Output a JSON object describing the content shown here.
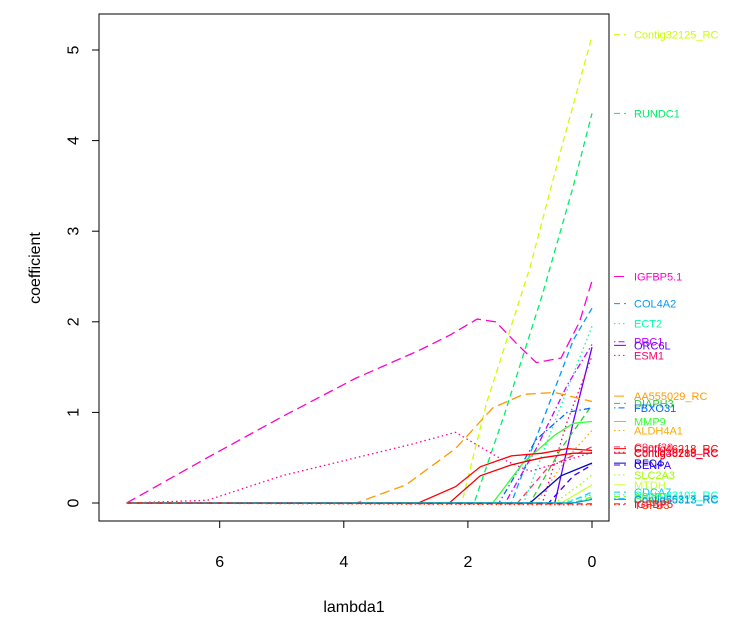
{
  "chart_data": {
    "type": "line",
    "title": "",
    "xlabel": "lambda1",
    "ylabel": "coefficient",
    "xlim": [
      7.6,
      -0.2
    ],
    "ylim": [
      -0.1,
      5.2
    ],
    "x_reversed": true,
    "x_ticks": [
      6,
      4,
      2,
      0
    ],
    "x_tick_labels": [
      "6",
      "4",
      "2",
      "0"
    ],
    "y_ticks": [
      0,
      1,
      2,
      3,
      4,
      5
    ],
    "y_tick_labels": [
      "0",
      "1",
      "2",
      "3",
      "4",
      "5"
    ],
    "grid": false,
    "legend": "none",
    "series": [
      {
        "name": "Contig32125_RC",
        "color": "#ccff00",
        "dash": "dashed",
        "label_y": 5.17,
        "points": [
          [
            7.5,
            0
          ],
          [
            2.1,
            0
          ],
          [
            1.7,
            1.1
          ],
          [
            1.0,
            2.6
          ],
          [
            0.5,
            3.9
          ],
          [
            0.0,
            5.15
          ]
        ]
      },
      {
        "name": "RUNDC1",
        "color": "#00ee66",
        "dash": "dashed",
        "label_y": 4.3,
        "points": [
          [
            7.5,
            0
          ],
          [
            1.9,
            0
          ],
          [
            1.4,
            1.0
          ],
          [
            0.8,
            2.3
          ],
          [
            0.3,
            3.5
          ],
          [
            0.0,
            4.3
          ]
        ]
      },
      {
        "name": "IGFBP5.1",
        "color": "#ff00cc",
        "dash": "longdash",
        "label_y": 2.5,
        "points": [
          [
            7.5,
            0
          ],
          [
            6.2,
            0.5
          ],
          [
            5.0,
            0.95
          ],
          [
            3.8,
            1.38
          ],
          [
            2.8,
            1.68
          ],
          [
            2.3,
            1.85
          ],
          [
            1.85,
            2.03
          ],
          [
            1.55,
            2.0
          ],
          [
            1.2,
            1.75
          ],
          [
            0.9,
            1.55
          ],
          [
            0.5,
            1.6
          ],
          [
            0.2,
            2.0
          ],
          [
            0.0,
            2.45
          ]
        ]
      },
      {
        "name": "COL4A2",
        "color": "#0099ff",
        "dash": "dashed",
        "label_y": 2.2,
        "points": [
          [
            7.5,
            0
          ],
          [
            1.3,
            0
          ],
          [
            0.8,
            0.9
          ],
          [
            0.3,
            1.8
          ],
          [
            0.0,
            2.15
          ]
        ]
      },
      {
        "name": "ECT2",
        "color": "#00ffaa",
        "dash": "dotted",
        "label_y": 1.98,
        "points": [
          [
            7.5,
            0
          ],
          [
            1.1,
            0
          ],
          [
            0.6,
            0.9
          ],
          [
            0.0,
            1.95
          ]
        ]
      },
      {
        "name": "PRC1",
        "color": "#cc00ff",
        "dash": "dotdash",
        "label_y": 1.78,
        "points": [
          [
            7.5,
            0
          ],
          [
            1.4,
            0
          ],
          [
            0.9,
            0.6
          ],
          [
            0.4,
            1.3
          ],
          [
            0.0,
            1.75
          ]
        ]
      },
      {
        "name": "ORC6L",
        "color": "#6600ff",
        "dash": "solid",
        "label_y": 1.74,
        "points": [
          [
            7.5,
            0
          ],
          [
            0.6,
            0
          ],
          [
            0.3,
            0.9
          ],
          [
            0.0,
            1.72
          ]
        ]
      },
      {
        "name": "ESM1",
        "color": "#ff0066",
        "dash": "dotted",
        "label_y": 1.63,
        "points": [
          [
            7.5,
            0
          ],
          [
            0.8,
            0
          ],
          [
            0.4,
            0.9
          ],
          [
            0.0,
            1.62
          ]
        ]
      },
      {
        "name": "AA555029_RC",
        "color": "#ff9900",
        "dash": "longdash",
        "label_y": 1.18,
        "points": [
          [
            7.5,
            0
          ],
          [
            3.8,
            0
          ],
          [
            3.0,
            0.2
          ],
          [
            2.2,
            0.6
          ],
          [
            1.6,
            1.05
          ],
          [
            1.1,
            1.2
          ],
          [
            0.6,
            1.22
          ],
          [
            0.0,
            1.12
          ]
        ]
      },
      {
        "name": "DIAPH3",
        "color": "#33cc33",
        "dash": "dashed",
        "label_y": 1.1,
        "points": [
          [
            7.5,
            0
          ],
          [
            1.0,
            0
          ],
          [
            0.5,
            0.6
          ],
          [
            0.0,
            1.08
          ]
        ]
      },
      {
        "name": "FBXO31",
        "color": "#0066ff",
        "dash": "dotdash",
        "label_y": 1.05,
        "points": [
          [
            7.5,
            0
          ],
          [
            1.5,
            0
          ],
          [
            0.9,
            0.7
          ],
          [
            0.4,
            1.0
          ],
          [
            0.0,
            1.05
          ]
        ]
      },
      {
        "name": "MMP9",
        "color": "#33ff33",
        "dash": "solid",
        "label_y": 0.9,
        "points": [
          [
            7.5,
            0
          ],
          [
            1.6,
            0
          ],
          [
            1.1,
            0.45
          ],
          [
            0.6,
            0.75
          ],
          [
            0.3,
            0.88
          ],
          [
            0.0,
            0.9
          ]
        ]
      },
      {
        "name": "ALDH4A1",
        "color": "#ffaa00",
        "dash": "dotted",
        "label_y": 0.8,
        "points": [
          [
            7.5,
            0
          ],
          [
            0.9,
            0
          ],
          [
            0.4,
            0.5
          ],
          [
            0.0,
            0.8
          ]
        ]
      },
      {
        "name": "C9orf30",
        "color": "#ff3366",
        "dash": "dashed",
        "label_y": 0.62,
        "points": [
          [
            7.5,
            0
          ],
          [
            1.2,
            0
          ],
          [
            0.7,
            0.4
          ],
          [
            0.0,
            0.62
          ]
        ]
      },
      {
        "name": "Contig46218_RC",
        "color": "#ff0000",
        "dash": "solid",
        "label_y": 0.6,
        "points": [
          [
            7.5,
            0
          ],
          [
            2.8,
            0
          ],
          [
            2.2,
            0.18
          ],
          [
            1.8,
            0.4
          ],
          [
            1.3,
            0.52
          ],
          [
            0.8,
            0.55
          ],
          [
            0.4,
            0.6
          ],
          [
            0.0,
            0.58
          ]
        ]
      },
      {
        "name": "Contig40719_RC",
        "color": "#ff0099",
        "dash": "dotted",
        "label_y": 0.56,
        "points": [
          [
            7.5,
            0
          ],
          [
            6.2,
            0.03
          ],
          [
            5.0,
            0.3
          ],
          [
            3.8,
            0.5
          ],
          [
            2.9,
            0.65
          ],
          [
            2.2,
            0.78
          ],
          [
            2.0,
            0.7
          ],
          [
            1.5,
            0.5
          ],
          [
            1.0,
            0.35
          ],
          [
            0.5,
            0.45
          ],
          [
            0.0,
            0.56
          ]
        ]
      },
      {
        "name": "Contig38288_RC",
        "color": "#ee0000",
        "dash": "solid",
        "label_y": 0.55,
        "points": [
          [
            7.5,
            0
          ],
          [
            2.3,
            0
          ],
          [
            1.8,
            0.3
          ],
          [
            1.3,
            0.42
          ],
          [
            0.8,
            0.5
          ],
          [
            0.3,
            0.55
          ],
          [
            0.0,
            0.55
          ]
        ]
      },
      {
        "name": "RFC4",
        "color": "#0000cc",
        "dash": "solid",
        "label_y": 0.44,
        "points": [
          [
            7.5,
            0
          ],
          [
            1.0,
            0
          ],
          [
            0.5,
            0.3
          ],
          [
            0.0,
            0.44
          ]
        ]
      },
      {
        "name": "CENPA",
        "color": "#3300ff",
        "dash": "dashed",
        "label_y": 0.42,
        "points": [
          [
            7.5,
            0
          ],
          [
            0.7,
            0
          ],
          [
            0.3,
            0.3
          ],
          [
            0.0,
            0.42
          ]
        ]
      },
      {
        "name": "SLC2A3",
        "color": "#99ff00",
        "dash": "dotted",
        "label_y": 0.31,
        "points": [
          [
            7.5,
            0
          ],
          [
            0.6,
            0
          ],
          [
            0.2,
            0.2
          ],
          [
            0.0,
            0.31
          ]
        ]
      },
      {
        "name": "MTDH",
        "color": "#ccff33",
        "dash": "solid",
        "label_y": 0.2,
        "points": [
          [
            7.5,
            0
          ],
          [
            0.5,
            0
          ],
          [
            0.2,
            0.12
          ],
          [
            0.0,
            0.2
          ]
        ]
      },
      {
        "name": "CDCA7",
        "color": "#00ccff",
        "dash": "dashed",
        "label_y": 0.12,
        "points": [
          [
            7.5,
            0
          ],
          [
            0.4,
            0
          ],
          [
            0.0,
            0.12
          ]
        ]
      },
      {
        "name": "Contig63102_RC",
        "color": "#00ffcc",
        "dash": "dotted",
        "label_y": 0.09,
        "points": [
          [
            7.5,
            0
          ],
          [
            0.5,
            0
          ],
          [
            0.0,
            0.09
          ]
        ]
      },
      {
        "name": "AP2B1",
        "color": "#66ff00",
        "dash": "dashed",
        "label_y": 0.07,
        "points": [
          [
            7.5,
            0
          ],
          [
            0.3,
            0
          ],
          [
            0.0,
            0.07
          ]
        ]
      },
      {
        "name": "Contig20217_RC",
        "color": "#33ccff",
        "dash": "dotdash",
        "label_y": 0.05,
        "points": [
          [
            7.5,
            0
          ],
          [
            0.35,
            0
          ],
          [
            0.0,
            0.05
          ]
        ]
      },
      {
        "name": "Contig55313_RC",
        "color": "#0099cc",
        "dash": "solid",
        "label_y": 0.04,
        "points": [
          [
            7.5,
            0
          ],
          [
            0.3,
            0
          ],
          [
            0.0,
            0.04
          ]
        ]
      },
      {
        "name": "IGFBP5",
        "color": "#ff0033",
        "dash": "dashed",
        "label_y": -0.01,
        "points": [
          [
            7.5,
            0
          ],
          [
            0.0,
            -0.01
          ]
        ]
      },
      {
        "name": "TGFB3",
        "color": "#ff3300",
        "dash": "dotted",
        "label_y": -0.02,
        "points": [
          [
            7.5,
            0
          ],
          [
            0.0,
            -0.02
          ]
        ]
      }
    ]
  }
}
